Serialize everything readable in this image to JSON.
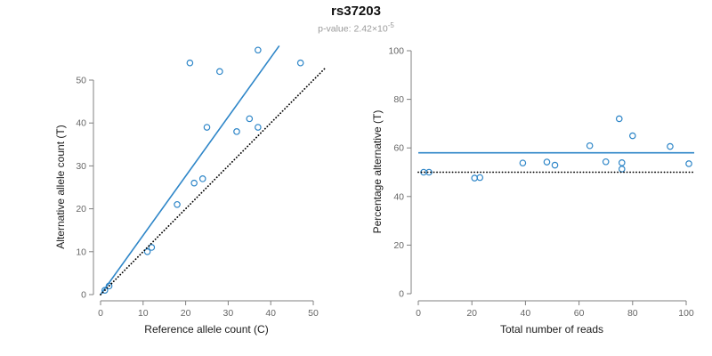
{
  "header": {
    "title": "rs37203",
    "pvalue_prefix": "p-value: 2.42×10",
    "pvalue_exponent": "-5"
  },
  "colors": {
    "accent_blue": "#2e86c8",
    "reference_black": "#000000",
    "axis_gray": "#808080"
  },
  "chart_data": [
    {
      "type": "scatter",
      "name": "allele-count-scatter",
      "xlabel": "Reference allele count (C)",
      "ylabel": "Alternative allele count (T)",
      "xlim": [
        0,
        50
      ],
      "ylim": [
        0,
        50
      ],
      "xticks": [
        0,
        10,
        20,
        30,
        40,
        50
      ],
      "yticks": [
        0,
        10,
        20,
        30,
        40,
        50
      ],
      "grid": false,
      "legend": false,
      "point_color": "#2e86c8",
      "points": [
        [
          1,
          1
        ],
        [
          2,
          2
        ],
        [
          11,
          10
        ],
        [
          12,
          11
        ],
        [
          18,
          21
        ],
        [
          21,
          54
        ],
        [
          22,
          26
        ],
        [
          24,
          27
        ],
        [
          25,
          39
        ],
        [
          28,
          52
        ],
        [
          32,
          38
        ],
        [
          35,
          41
        ],
        [
          37,
          39
        ],
        [
          37,
          57
        ],
        [
          47,
          54
        ]
      ],
      "lines": [
        {
          "name": "fitted-ratio-line",
          "style": "solid",
          "color": "#2e86c8",
          "from": [
            0,
            0
          ],
          "to": [
            42,
            58
          ]
        },
        {
          "name": "identity-line",
          "style": "dotted",
          "color": "#000000",
          "from": [
            0,
            0
          ],
          "to": [
            53,
            53
          ]
        }
      ]
    },
    {
      "type": "scatter",
      "name": "percentage-vs-reads-scatter",
      "xlabel": "Total number of reads",
      "ylabel": "Percentage alternative (T)",
      "xlim": [
        0,
        100
      ],
      "ylim": [
        0,
        100
      ],
      "xticks": [
        0,
        20,
        40,
        60,
        80,
        100
      ],
      "yticks": [
        0,
        20,
        40,
        60,
        80,
        100
      ],
      "grid": false,
      "legend": false,
      "point_color": "#2e86c8",
      "points": [
        [
          2,
          50
        ],
        [
          4,
          50
        ],
        [
          21,
          47.6
        ],
        [
          23,
          47.8
        ],
        [
          39,
          53.8
        ],
        [
          48,
          54.2
        ],
        [
          51,
          52.9
        ],
        [
          64,
          60.9
        ],
        [
          70,
          54.3
        ],
        [
          75,
          72
        ],
        [
          76,
          51.3
        ],
        [
          76,
          53.9
        ],
        [
          80,
          65
        ],
        [
          94,
          60.6
        ],
        [
          101,
          53.5
        ]
      ],
      "lines": [
        {
          "name": "estimated-percentage-line",
          "style": "solid",
          "color": "#2e86c8",
          "from": [
            0,
            58
          ],
          "to": [
            103,
            58
          ]
        },
        {
          "name": "fifty-percent-line",
          "style": "dotted",
          "color": "#000000",
          "from": [
            0,
            50
          ],
          "to": [
            103,
            50
          ]
        }
      ]
    }
  ]
}
